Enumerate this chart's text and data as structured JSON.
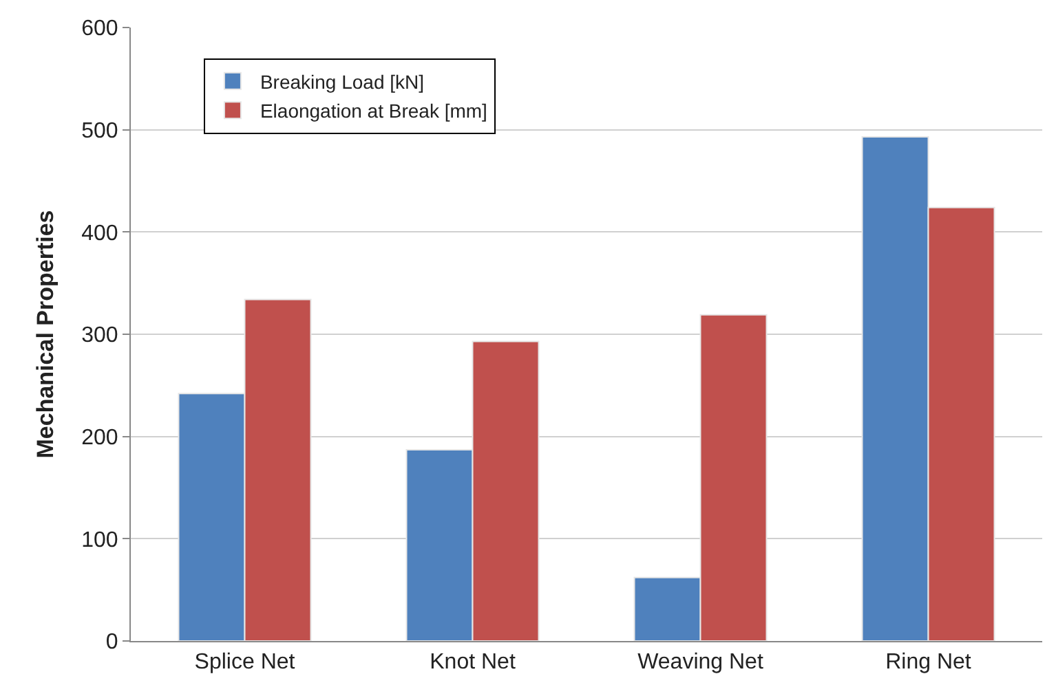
{
  "chart_data": {
    "type": "bar",
    "ylabel": "Mechanical Properties",
    "categories": [
      "Splice Net",
      "Knot Net",
      "Weaving Net",
      "Ring Net"
    ],
    "series": [
      {
        "name": "Breaking Load [kN]",
        "color": "#4f81bd",
        "values": [
          242,
          187,
          62,
          493
        ]
      },
      {
        "name": "Elaongation at Break [mm]",
        "color": "#c0504d",
        "values": [
          334,
          293,
          319,
          424
        ]
      }
    ],
    "ylim": [
      0,
      600
    ],
    "yticks": [
      0,
      100,
      200,
      300,
      400,
      500,
      600
    ],
    "grid": "y",
    "legend": "top left"
  }
}
